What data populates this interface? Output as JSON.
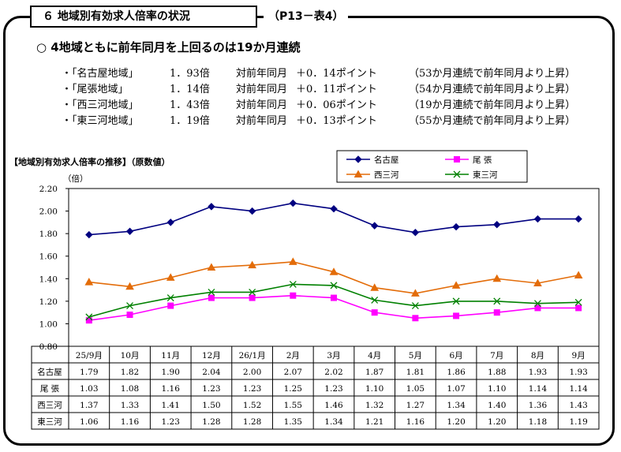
{
  "header": {
    "title": "６ 地域別有効求人倍率の状況",
    "ref": "（P13－表4）"
  },
  "headline": "○ 4地域ともに前年同月を上回るのは19か月連続",
  "bullets": [
    {
      "region": "・「名古屋地域」",
      "value": "1．93倍",
      "label": "対前年同月",
      "diff": "＋0．14ポイント",
      "note": "（53か月連続で前年同月より上昇）"
    },
    {
      "region": "・「尾張地域」",
      "value": "1．14倍",
      "label": "対前年同月",
      "diff": "＋0．11ポイント",
      "note": "（54か月連続で前年同月より上昇）"
    },
    {
      "region": "・「西三河地域」",
      "value": "1．43倍",
      "label": "対前年同月",
      "diff": "＋0．06ポイント",
      "note": "（19か月連続で前年同月より上昇）"
    },
    {
      "region": "・「東三河地域」",
      "value": "1．19倍",
      "label": "対前年同月",
      "diff": "＋0．13ポイント",
      "note": "（55か月連続で前年同月より上昇）"
    }
  ],
  "chart_data": {
    "type": "line",
    "title": "【地域別有効求人倍率の推移】（原数値）",
    "ylabel": "（倍）",
    "ylim": [
      0.8,
      2.2
    ],
    "yticks": [
      "2.20",
      "2.00",
      "1.80",
      "1.60",
      "1.40",
      "1.20",
      "1.00",
      "0.80"
    ],
    "ytick_values": [
      2.2,
      2.0,
      1.8,
      1.6,
      1.4,
      1.2,
      1.0,
      0.8
    ],
    "categories": [
      "25/9月",
      "10月",
      "11月",
      "12月",
      "26/1月",
      "2月",
      "3月",
      "4月",
      "5月",
      "6月",
      "7月",
      "8月",
      "9月"
    ],
    "series": [
      {
        "name": "名古屋",
        "table_name": "名古屋",
        "color": "#000080",
        "marker": "diamond",
        "values": [
          1.79,
          1.82,
          1.9,
          2.04,
          2.0,
          2.07,
          2.02,
          1.87,
          1.81,
          1.86,
          1.88,
          1.93,
          1.93
        ],
        "labels": [
          "1.79",
          "1.82",
          "1.90",
          "2.04",
          "2.00",
          "2.07",
          "2.02",
          "1.87",
          "1.81",
          "1.86",
          "1.88",
          "1.93",
          "1.93"
        ]
      },
      {
        "name": "尾 張",
        "table_name": "尾 張",
        "color": "#ff00ff",
        "marker": "square",
        "values": [
          1.03,
          1.08,
          1.16,
          1.23,
          1.23,
          1.25,
          1.23,
          1.1,
          1.05,
          1.07,
          1.1,
          1.14,
          1.14
        ],
        "labels": [
          "1.03",
          "1.08",
          "1.16",
          "1.23",
          "1.23",
          "1.25",
          "1.23",
          "1.10",
          "1.05",
          "1.07",
          "1.10",
          "1.14",
          "1.14"
        ]
      },
      {
        "name": "西三河",
        "table_name": "西三河",
        "color": "#e36c09",
        "marker": "triangle",
        "values": [
          1.37,
          1.33,
          1.41,
          1.5,
          1.52,
          1.55,
          1.46,
          1.32,
          1.27,
          1.34,
          1.4,
          1.36,
          1.43
        ],
        "labels": [
          "1.37",
          "1.33",
          "1.41",
          "1.50",
          "1.52",
          "1.55",
          "1.46",
          "1.32",
          "1.27",
          "1.34",
          "1.40",
          "1.36",
          "1.43"
        ]
      },
      {
        "name": "東三河",
        "table_name": "東三河",
        "color": "#008000",
        "marker": "x",
        "values": [
          1.06,
          1.16,
          1.23,
          1.28,
          1.28,
          1.35,
          1.34,
          1.21,
          1.16,
          1.2,
          1.2,
          1.18,
          1.19
        ],
        "labels": [
          "1.06",
          "1.16",
          "1.23",
          "1.28",
          "1.28",
          "1.35",
          "1.34",
          "1.21",
          "1.16",
          "1.20",
          "1.20",
          "1.18",
          "1.19"
        ]
      }
    ],
    "legend_position": "top-right",
    "grid": false
  }
}
